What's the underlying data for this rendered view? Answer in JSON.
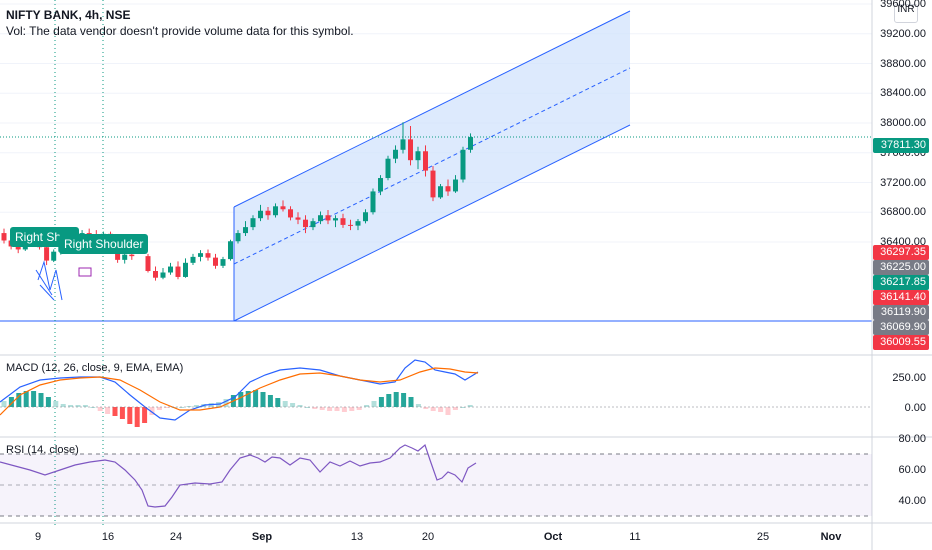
{
  "header": {
    "symbol": "NIFTY BANK, 4h, NSE",
    "vol_note": "Vol: The data vendor doesn't provide volume data for this symbol."
  },
  "currency": "INR",
  "price_axis": [
    "39600.00",
    "39200.00",
    "38800.00",
    "38400.00",
    "38000.00",
    "37600.00",
    "37200.00",
    "36800.00",
    "36400.00"
  ],
  "price_tags": [
    {
      "text": "37811.30",
      "color": "#089981"
    },
    {
      "text": "36297.35",
      "color": "#f23645"
    },
    {
      "text": "36225.00",
      "color": "#787b86"
    },
    {
      "text": "36217.85",
      "color": "#089981"
    },
    {
      "text": "36141.40",
      "color": "#f23645"
    },
    {
      "text": "36119.90",
      "color": "#787b86"
    },
    {
      "text": "36069.90",
      "color": "#787b86"
    },
    {
      "text": "36009.55",
      "color": "#f23645"
    }
  ],
  "annotations": {
    "shoulder1": "Right Shou",
    "shoulder2": "Right Shoulder"
  },
  "macd": {
    "label": "MACD (12, 26, close, 9, EMA, EMA)",
    "axis": [
      "250.00",
      "0.00"
    ]
  },
  "rsi": {
    "label": "RSI (14, close)",
    "axis": [
      "80.00",
      "60.00",
      "40.00"
    ]
  },
  "time_axis": [
    {
      "text": "9",
      "bold": false
    },
    {
      "text": "16",
      "bold": false
    },
    {
      "text": "24",
      "bold": false
    },
    {
      "text": "Sep",
      "bold": true
    },
    {
      "text": "13",
      "bold": false
    },
    {
      "text": "20",
      "bold": false
    },
    {
      "text": "Oct",
      "bold": true
    },
    {
      "text": "11",
      "bold": false
    },
    {
      "text": "25",
      "bold": false
    },
    {
      "text": "Nov",
      "bold": true
    }
  ],
  "chart_data": {
    "type": "candlestick",
    "price_range": [
      35960,
      39740
    ],
    "candles": [
      [
        36520,
        36580,
        36380,
        36420
      ],
      [
        36420,
        36460,
        36300,
        36340
      ],
      [
        36340,
        36400,
        36250,
        36300
      ],
      [
        36300,
        36470,
        36280,
        36440
      ],
      [
        36440,
        36520,
        36400,
        36480
      ],
      [
        36480,
        36500,
        36300,
        36330
      ],
      [
        36330,
        36380,
        36090,
        36150
      ],
      [
        36150,
        36300,
        36130,
        36270
      ],
      [
        36270,
        36420,
        36230,
        36380
      ],
      [
        36380,
        36440,
        36330,
        36420
      ],
      [
        36420,
        36510,
        36380,
        36470
      ],
      [
        36470,
        36560,
        36420,
        36520
      ],
      [
        36520,
        36580,
        36450,
        36500
      ],
      [
        36500,
        36560,
        36420,
        36460
      ],
      [
        36460,
        36540,
        36420,
        36510
      ],
      [
        36510,
        36540,
        36240,
        36290
      ],
      [
        36290,
        36340,
        36120,
        36160
      ],
      [
        36160,
        36260,
        36110,
        36230
      ],
      [
        36230,
        36300,
        36160,
        36210
      ],
      [
        36210,
        36240,
        35990,
        36010
      ],
      [
        36010,
        36070,
        35880,
        35920
      ],
      [
        35920,
        36050,
        35900,
        35990
      ],
      [
        35990,
        36120,
        35960,
        36070
      ],
      [
        36070,
        36140,
        35900,
        35930
      ],
      [
        35930,
        36180,
        35920,
        36120
      ],
      [
        36120,
        36240,
        36090,
        36200
      ],
      [
        36200,
        36290,
        36140,
        36250
      ],
      [
        36250,
        36300,
        36150,
        36190
      ],
      [
        36190,
        36240,
        36040,
        36080
      ],
      [
        36080,
        36200,
        36050,
        36170
      ],
      [
        36170,
        36430,
        36150,
        36410
      ],
      [
        36410,
        36560,
        36380,
        36520
      ],
      [
        36520,
        36680,
        36480,
        36600
      ],
      [
        36600,
        36760,
        36560,
        36720
      ],
      [
        36720,
        36900,
        36680,
        36820
      ],
      [
        36820,
        36870,
        36700,
        36760
      ],
      [
        36760,
        36920,
        36730,
        36880
      ],
      [
        36880,
        36960,
        36810,
        36840
      ],
      [
        36840,
        36880,
        36690,
        36730
      ],
      [
        36730,
        36800,
        36640,
        36700
      ],
      [
        36700,
        36760,
        36520,
        36600
      ],
      [
        36600,
        36720,
        36560,
        36680
      ],
      [
        36680,
        36810,
        36640,
        36760
      ],
      [
        36760,
        36830,
        36640,
        36690
      ],
      [
        36690,
        36760,
        36600,
        36720
      ],
      [
        36720,
        36780,
        36590,
        36630
      ],
      [
        36630,
        36700,
        36560,
        36620
      ],
      [
        36620,
        36710,
        36560,
        36680
      ],
      [
        36680,
        36840,
        36650,
        36800
      ],
      [
        36800,
        37120,
        36770,
        37080
      ],
      [
        37080,
        37300,
        37030,
        37260
      ],
      [
        37260,
        37560,
        37230,
        37520
      ],
      [
        37520,
        37700,
        37460,
        37640
      ],
      [
        37640,
        38010,
        37590,
        37780
      ],
      [
        37780,
        37960,
        37430,
        37500
      ],
      [
        37500,
        37680,
        37380,
        37620
      ],
      [
        37620,
        37700,
        37280,
        37360
      ],
      [
        37360,
        37420,
        36950,
        37000
      ],
      [
        37000,
        37180,
        36980,
        37150
      ],
      [
        37150,
        37240,
        37020,
        37080
      ],
      [
        37080,
        37300,
        37060,
        37240
      ],
      [
        37240,
        37680,
        37200,
        37640
      ],
      [
        37640,
        37860,
        37600,
        37811
      ]
    ]
  }
}
